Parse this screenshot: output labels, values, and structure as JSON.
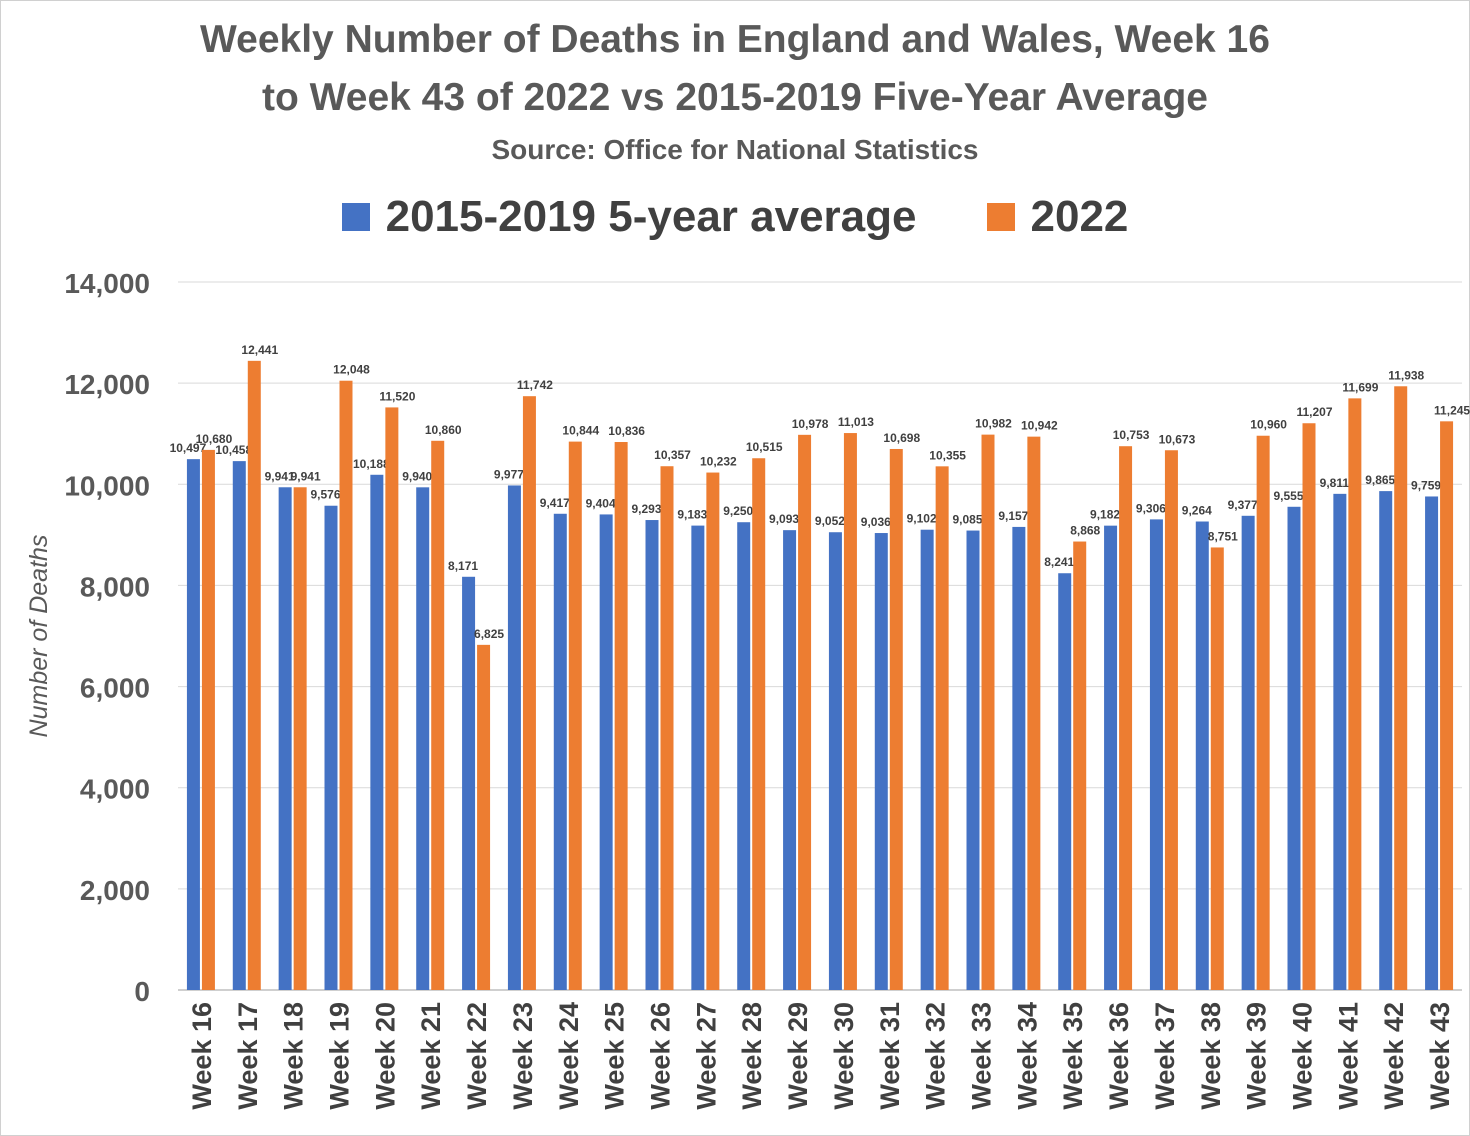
{
  "chart_data": {
    "type": "bar",
    "title_line1": "Weekly Number of Deaths in England and Wales, Week 16",
    "title_line2": "to Week 43 of 2022 vs 2015-2019 Five-Year Average",
    "subtitle": "Source: Office for National Statistics",
    "ylabel": "Number of Deaths",
    "xlabel": "",
    "ylim": [
      0,
      14000
    ],
    "yticks": [
      "0",
      "2,000",
      "4,000",
      "6,000",
      "8,000",
      "10,000",
      "12,000",
      "14,000"
    ],
    "grid": true,
    "legend_position": "top",
    "categories": [
      "Week 16",
      "Week 17",
      "Week 18",
      "Week 19",
      "Week 20",
      "Week 21",
      "Week 22",
      "Week 23",
      "Week 24",
      "Week 25",
      "Week 26",
      "Week 27",
      "Week 28",
      "Week 29",
      "Week 30",
      "Week 31",
      "Week 32",
      "Week 33",
      "Week 34",
      "Week 35",
      "Week 36",
      "Week 37",
      "Week 38",
      "Week 39",
      "Week 40",
      "Week 41",
      "Week 42",
      "Week 43"
    ],
    "series": [
      {
        "name": "2015-2019 5-year average",
        "color": "#4472C4",
        "values": [
          10497,
          10458,
          9941,
          9576,
          10188,
          9940,
          8171,
          9977,
          9417,
          9404,
          9293,
          9183,
          9250,
          9093,
          9052,
          9036,
          9102,
          9085,
          9157,
          8241,
          9182,
          9306,
          9264,
          9377,
          9555,
          9811,
          9865,
          9759
        ],
        "labels": [
          "10,497",
          "10,458",
          "9,941",
          "9,576",
          "10,188",
          "9,940",
          "8,171",
          "9,977",
          "9,417",
          "9,404",
          "9,293",
          "9,183",
          "9,250",
          "9,093",
          "9,052",
          "9,036",
          "9,102",
          "9,085",
          "9,157",
          "8,241",
          "9,182",
          "9,306",
          "9,264",
          "9,377",
          "9,555",
          "9,811",
          "9,865",
          "9,759"
        ]
      },
      {
        "name": "2022",
        "color": "#ED7D31",
        "values": [
          10680,
          12441,
          9941,
          12048,
          11520,
          10860,
          6825,
          11742,
          10844,
          10836,
          10357,
          10232,
          10515,
          10978,
          11013,
          10698,
          10355,
          10982,
          10942,
          8868,
          10753,
          10673,
          8751,
          10960,
          11207,
          11699,
          11938,
          11245
        ],
        "labels": [
          "10,680",
          "12,441",
          "9,941",
          "12,048",
          "11,520",
          "10,860",
          "6,825",
          "11,742",
          "10,844",
          "10,836",
          "10,357",
          "10,232",
          "10,515",
          "10,978",
          "11,013",
          "10,698",
          "10,355",
          "10,982",
          "10,942",
          "8,868",
          "10,753",
          "10,673",
          "8,751",
          "10,960",
          "11,207",
          "11,699",
          "11,938",
          "11,245"
        ]
      }
    ]
  }
}
